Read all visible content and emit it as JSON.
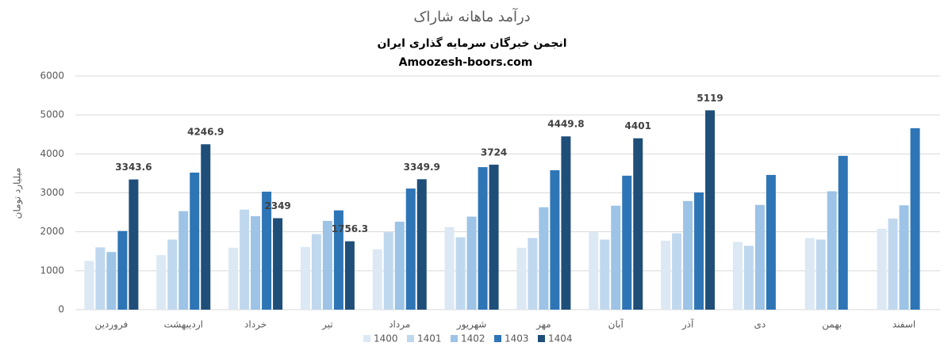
{
  "chart_data": {
    "type": "bar",
    "title": "درآمد ماهانه شاراک",
    "subtitle": "انجمن خبرگان سرمایه گذاری ایران",
    "website": "Amoozesh-boors.com",
    "y_label": "میلیارد تومان",
    "categories": [
      "فروردین",
      "اردیبهشت",
      "خرداد",
      "تیر",
      "مرداد",
      "شهریور",
      "مهر",
      "آبان",
      "آذر",
      "دی",
      "بهمن",
      "اسفند"
    ],
    "series": [
      {
        "name": "1400",
        "color": "#dce8f4",
        "values": [
          1250,
          1400,
          1590,
          1610,
          1550,
          2120,
          1590,
          2000,
          1770,
          1740,
          1840,
          2080
        ]
      },
      {
        "name": "1401",
        "color": "#c0d8ee",
        "values": [
          1600,
          1800,
          2570,
          1940,
          1990,
          1860,
          1840,
          1800,
          1960,
          1640,
          1800,
          2340
        ]
      },
      {
        "name": "1402",
        "color": "#9dc3e6",
        "values": [
          1480,
          2530,
          2400,
          2280,
          2260,
          2390,
          2630,
          2670,
          2790,
          2690,
          3040,
          2680
        ]
      },
      {
        "name": "1403",
        "color": "#2e75b6",
        "values": [
          2020,
          3520,
          3030,
          2550,
          3110,
          3660,
          3580,
          3440,
          3010,
          3460,
          3950,
          4660
        ]
      },
      {
        "name": "1404",
        "color": "#1f4e79",
        "values": [
          3343.6,
          4246.9,
          2349,
          1756.3,
          3349.9,
          3724,
          4449.8,
          4401,
          5119,
          null,
          null,
          null
        ],
        "data_labels": true
      }
    ],
    "ylim": [
      0,
      6000
    ],
    "yticks": [
      0,
      1000,
      2000,
      3000,
      4000,
      5000,
      6000
    ],
    "grid": true,
    "legend": "bottom"
  }
}
